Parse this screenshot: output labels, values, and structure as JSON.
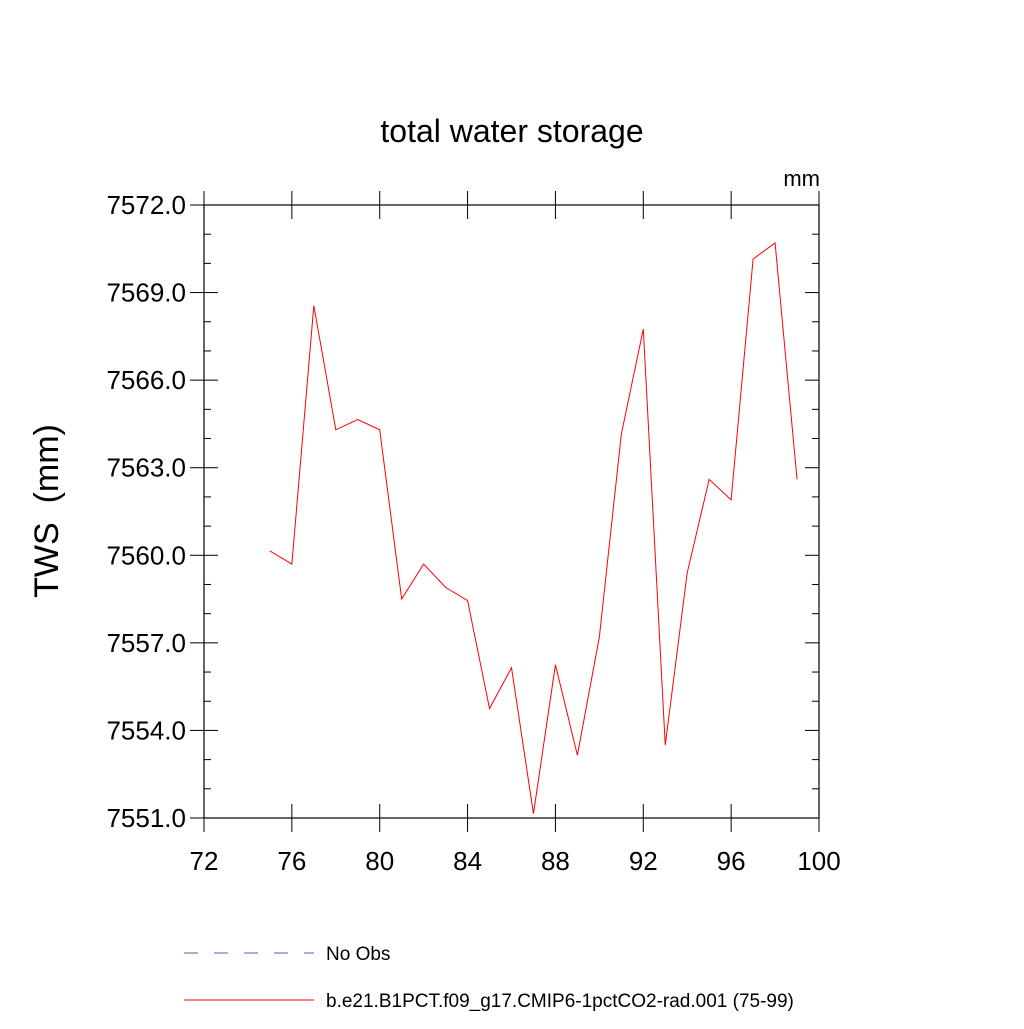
{
  "chart_data": {
    "type": "line",
    "title": "total water storage",
    "units_label": "mm",
    "ylabel": "TWS  (mm)",
    "xlabel": "",
    "xlim": [
      72,
      100
    ],
    "ylim": [
      7551.0,
      7572.0
    ],
    "x_ticks": [
      "72",
      "76",
      "80",
      "84",
      "88",
      "92",
      "96",
      "100"
    ],
    "y_ticks": [
      "7551.0",
      "7554.0",
      "7557.0",
      "7560.0",
      "7563.0",
      "7566.0",
      "7569.0",
      "7572.0"
    ],
    "grid": false,
    "legend_position": "bottom-left",
    "series": [
      {
        "name": "No Obs",
        "color": "#5a5aa8",
        "dash": "dashed",
        "x": [],
        "y": []
      },
      {
        "name": "b.e21.B1PCT.f09_g17.CMIP6-1pctCO2-rad.001 (75-99)",
        "color": "#ff0000",
        "dash": "solid",
        "x": [
          75,
          76,
          77,
          78,
          79,
          80,
          81,
          82,
          83,
          84,
          85,
          86,
          87,
          88,
          89,
          90,
          91,
          92,
          93,
          94,
          95,
          96,
          97,
          98,
          99
        ],
        "y": [
          7560.15,
          7559.7,
          7568.55,
          7564.3,
          7564.65,
          7564.3,
          7558.5,
          7559.7,
          7558.9,
          7558.45,
          7554.75,
          7556.15,
          7551.15,
          7556.25,
          7553.15,
          7557.2,
          7564.15,
          7567.75,
          7553.5,
          7559.4,
          7562.6,
          7561.9,
          7570.15,
          7570.7,
          7562.6
        ]
      }
    ]
  }
}
